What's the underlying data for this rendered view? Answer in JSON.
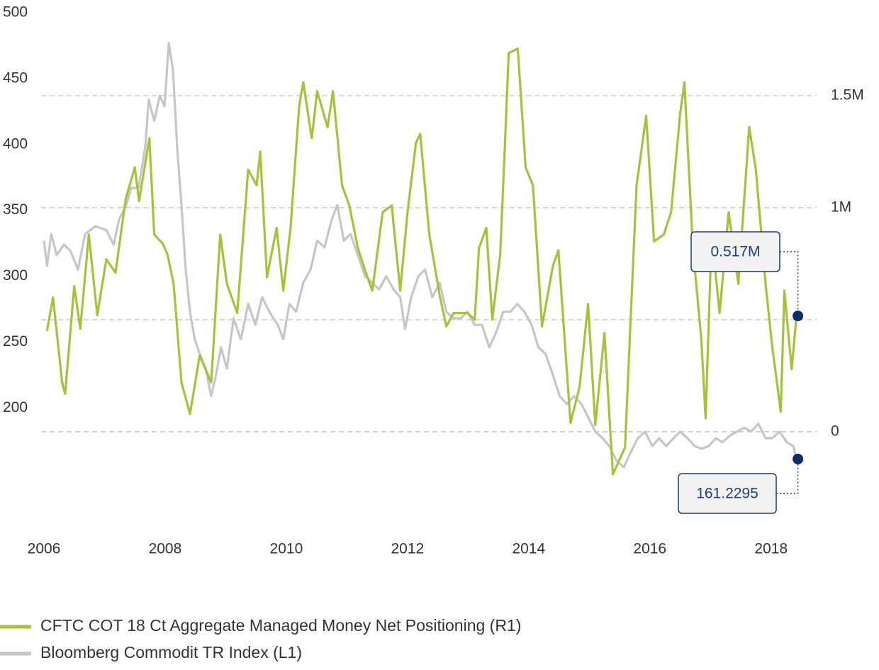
{
  "chart_data": {
    "type": "line",
    "xlim": [
      2006,
      2018.6
    ],
    "xticks": [
      2006,
      2008,
      2010,
      2012,
      2014,
      2016,
      2018
    ],
    "ylim": [
      120,
      500
    ],
    "yticks": [
      200,
      250,
      300,
      350,
      400,
      450,
      500
    ],
    "y2lim": [
      -0.364,
      1.87
    ],
    "y2ticks": [
      0,
      {
        "value": 1,
        "label": "1M"
      },
      {
        "value": 1.5,
        "label": "1.5M"
      }
    ],
    "y2grid": [
      0,
      0.5,
      1,
      1.5
    ],
    "grid": true,
    "series": [
      {
        "name": "CFTC COT 18 Ct Aggregate Managed Money Net Positioning (R1)",
        "color": "#a5c339",
        "axis": "y2",
        "x": [
          2006.05,
          2006.15,
          2006.3,
          2006.35,
          2006.5,
          2006.6,
          2006.74,
          2006.88,
          2007.03,
          2007.18,
          2007.35,
          2007.5,
          2007.57,
          2007.74,
          2007.82,
          2007.96,
          2008.04,
          2008.14,
          2008.27,
          2008.41,
          2008.57,
          2008.76,
          2008.91,
          2009.02,
          2009.19,
          2009.37,
          2009.51,
          2009.57,
          2009.68,
          2009.84,
          2009.95,
          2010.07,
          2010.21,
          2010.28,
          2010.42,
          2010.51,
          2010.68,
          2010.77,
          2010.92,
          2011.04,
          2011.18,
          2011.3,
          2011.42,
          2011.59,
          2011.74,
          2011.88,
          2012.0,
          2012.14,
          2012.21,
          2012.36,
          2012.53,
          2012.64,
          2012.76,
          2012.99,
          2013.11,
          2013.18,
          2013.3,
          2013.4,
          2013.53,
          2013.6,
          2013.67,
          2013.82,
          2013.95,
          2014.07,
          2014.22,
          2014.4,
          2014.49,
          2014.69,
          2014.84,
          2014.98,
          2015.1,
          2015.25,
          2015.39,
          2015.59,
          2015.78,
          2015.94,
          2016.07,
          2016.23,
          2016.35,
          2016.5,
          2016.57,
          2016.71,
          2016.85,
          2016.92,
          2017.02,
          2017.15,
          2017.3,
          2017.46,
          2017.64,
          2017.75,
          2017.91,
          2018.02,
          2018.16,
          2018.22,
          2018.34,
          2018.42
        ],
        "values": [
          0.45,
          0.6,
          0.22,
          0.17,
          0.65,
          0.46,
          0.88,
          0.52,
          0.77,
          0.71,
          1.04,
          1.18,
          1.03,
          1.31,
          0.88,
          0.84,
          0.79,
          0.66,
          0.22,
          0.08,
          0.34,
          0.22,
          0.88,
          0.66,
          0.53,
          1.17,
          1.1,
          1.25,
          0.69,
          0.91,
          0.63,
          0.91,
          1.45,
          1.56,
          1.31,
          1.52,
          1.36,
          1.52,
          1.1,
          1.01,
          0.82,
          0.72,
          0.63,
          0.98,
          1.01,
          0.63,
          0.98,
          1.29,
          1.33,
          0.88,
          0.61,
          0.47,
          0.53,
          0.53,
          0.5,
          0.82,
          0.91,
          0.5,
          0.79,
          1.23,
          1.69,
          1.71,
          1.18,
          1.1,
          0.47,
          0.74,
          0.81,
          0.04,
          0.2,
          0.57,
          0.03,
          0.44,
          -0.19,
          -0.07,
          1.1,
          1.41,
          0.85,
          0.88,
          0.98,
          1.42,
          1.56,
          0.82,
          0.41,
          0.06,
          0.88,
          0.53,
          0.98,
          0.66,
          1.36,
          1.17,
          0.66,
          0.38,
          0.09,
          0.63,
          0.28,
          0.517
        ]
      },
      {
        "name": "Bloomberg Commodit TR Index (L1)",
        "color": "#c6c6c6",
        "x": [
          2006.0,
          2006.05,
          2006.12,
          2006.21,
          2006.33,
          2006.44,
          2006.56,
          2006.68,
          2006.85,
          2007.03,
          2007.15,
          2007.24,
          2007.36,
          2007.44,
          2007.56,
          2007.67,
          2007.73,
          2007.82,
          2007.91,
          2007.99,
          2008.06,
          2008.13,
          2008.2,
          2008.27,
          2008.34,
          2008.41,
          2008.49,
          2008.57,
          2008.67,
          2008.76,
          2008.84,
          2008.92,
          2009.02,
          2009.13,
          2009.25,
          2009.37,
          2009.49,
          2009.6,
          2009.72,
          2009.86,
          2009.95,
          2010.05,
          2010.16,
          2010.28,
          2010.4,
          2010.51,
          2010.63,
          2010.75,
          2010.84,
          2010.95,
          2011.06,
          2011.18,
          2011.3,
          2011.42,
          2011.53,
          2011.65,
          2011.77,
          2011.88,
          2011.96,
          2012.06,
          2012.18,
          2012.29,
          2012.41,
          2012.53,
          2012.64,
          2012.76,
          2012.88,
          2012.99,
          2013.11,
          2013.23,
          2013.35,
          2013.46,
          2013.58,
          2013.7,
          2013.81,
          2013.93,
          2014.05,
          2014.16,
          2014.28,
          2014.4,
          2014.51,
          2014.63,
          2014.75,
          2014.87,
          2014.98,
          2015.1,
          2015.22,
          2015.33,
          2015.45,
          2015.57,
          2015.68,
          2015.8,
          2015.92,
          2016.04,
          2016.15,
          2016.27,
          2016.39,
          2016.5,
          2016.62,
          2016.74,
          2016.85,
          2016.97,
          2017.09,
          2017.2,
          2017.32,
          2017.44,
          2017.56,
          2017.67,
          2017.79,
          2017.91,
          2018.02,
          2018.14,
          2018.26,
          2018.37,
          2018.42
        ],
        "values": [
          327,
          308,
          332,
          316,
          324,
          319,
          305,
          332,
          338,
          335,
          324,
          343,
          354,
          367,
          367,
          397,
          434,
          418,
          437,
          429,
          477,
          456,
          397,
          354,
          305,
          273,
          252,
          241,
          230,
          209,
          225,
          246,
          230,
          268,
          252,
          279,
          263,
          284,
          273,
          263,
          252,
          279,
          273,
          295,
          305,
          327,
          322,
          343,
          354,
          327,
          332,
          316,
          300,
          295,
          290,
          300,
          290,
          284,
          260,
          284,
          300,
          305,
          284,
          295,
          273,
          268,
          268,
          273,
          263,
          263,
          246,
          257,
          273,
          273,
          279,
          273,
          263,
          246,
          241,
          225,
          209,
          203,
          209,
          203,
          193,
          182,
          177,
          171,
          160,
          155,
          166,
          177,
          182,
          171,
          177,
          171,
          177,
          182,
          177,
          171,
          169,
          171,
          177,
          174,
          179,
          182,
          185,
          182,
          188,
          177,
          177,
          182,
          174,
          171,
          161.2295
        ]
      }
    ],
    "annotations": [
      {
        "label": "0.517M",
        "value": 0.517,
        "axis": "y2"
      },
      {
        "label": "161.2295",
        "value": 161.2295
      }
    ]
  }
}
